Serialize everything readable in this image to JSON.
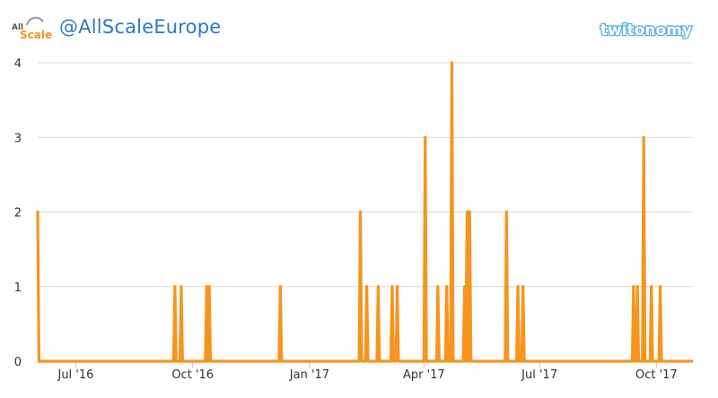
{
  "header": {
    "account_handle": "@AllScaleEurope",
    "logo_text_top": "All",
    "logo_text_bottom": "Scale",
    "brand_logo_text": "twitonomy"
  },
  "colors": {
    "series": "#f7941d",
    "grid": "#d9d9d9",
    "handle": "#2e78c8",
    "brand": "#5aaee0"
  },
  "chart_data": {
    "type": "line",
    "title": "",
    "xlabel": "",
    "ylabel": "",
    "x_range": [
      "2016-06-01",
      "2017-10-29"
    ],
    "ylim": [
      0,
      4
    ],
    "y_ticks": [
      0,
      1,
      2,
      3,
      4
    ],
    "x_ticks": [
      {
        "date": "2016-07-01",
        "label": "Jul '16"
      },
      {
        "date": "2016-10-01",
        "label": "Oct '16"
      },
      {
        "date": "2017-01-01",
        "label": "Jan '17"
      },
      {
        "date": "2017-04-01",
        "label": "Apr '17"
      },
      {
        "date": "2017-07-01",
        "label": "Jul '17"
      },
      {
        "date": "2017-10-01",
        "label": "Oct '17"
      }
    ],
    "grid": true,
    "legend": "none",
    "series": [
      {
        "points": [
          [
            "2016-06-01",
            2
          ],
          [
            "2016-09-17",
            1
          ],
          [
            "2016-09-22",
            1
          ],
          [
            "2016-10-12",
            1
          ],
          [
            "2016-10-14",
            1
          ],
          [
            "2016-12-09",
            1
          ],
          [
            "2017-02-10",
            2
          ],
          [
            "2017-02-15",
            1
          ],
          [
            "2017-02-24",
            1
          ],
          [
            "2017-03-07",
            1
          ],
          [
            "2017-03-11",
            1
          ],
          [
            "2017-04-02",
            3
          ],
          [
            "2017-04-12",
            1
          ],
          [
            "2017-04-19",
            1
          ],
          [
            "2017-04-23",
            4
          ],
          [
            "2017-05-03",
            1
          ],
          [
            "2017-05-05",
            2
          ],
          [
            "2017-05-07",
            2
          ],
          [
            "2017-06-05",
            2
          ],
          [
            "2017-06-14",
            1
          ],
          [
            "2017-06-18",
            1
          ],
          [
            "2017-09-13",
            1
          ],
          [
            "2017-09-16",
            1
          ],
          [
            "2017-09-21",
            3
          ],
          [
            "2017-09-27",
            1
          ],
          [
            "2017-10-04",
            1
          ]
        ]
      }
    ]
  }
}
